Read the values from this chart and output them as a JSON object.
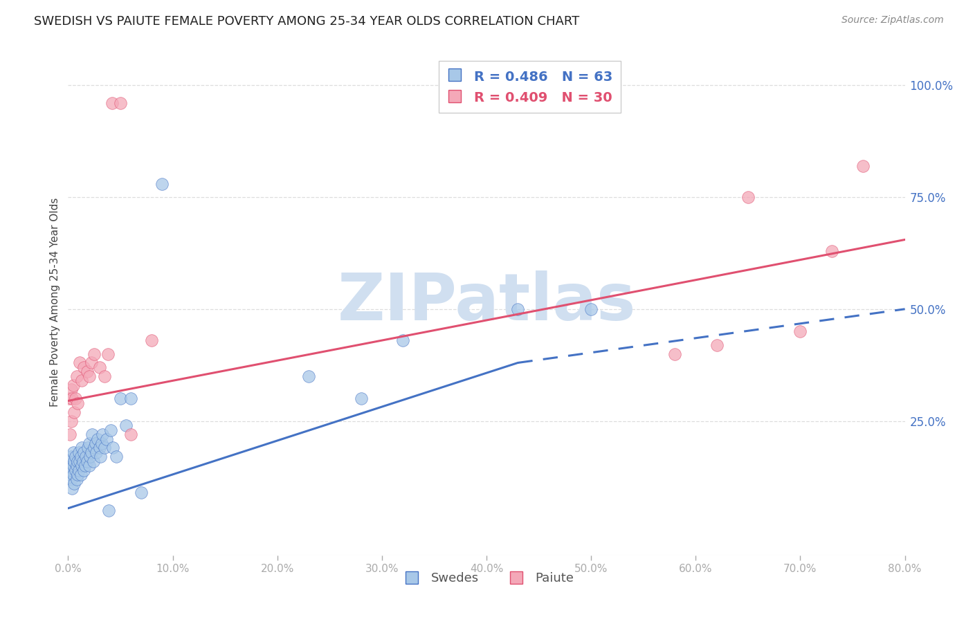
{
  "title": "SWEDISH VS PAIUTE FEMALE POVERTY AMONG 25-34 YEAR OLDS CORRELATION CHART",
  "source": "Source: ZipAtlas.com",
  "ylabel": "Female Poverty Among 25-34 Year Olds",
  "xlim": [
    0.0,
    0.8
  ],
  "ylim": [
    -0.05,
    1.08
  ],
  "yticks_right": [
    0.25,
    0.5,
    0.75,
    1.0
  ],
  "xticks": [
    0.0,
    0.1,
    0.2,
    0.3,
    0.4,
    0.5,
    0.6,
    0.7,
    0.8
  ],
  "swedes_color": "#a8c8e8",
  "paiute_color": "#f4a8b8",
  "swedes_R": 0.486,
  "swedes_N": 63,
  "paiute_R": 0.409,
  "paiute_N": 30,
  "trend_blue": "#4472c4",
  "trend_pink": "#e05070",
  "watermark": "ZIPatlas",
  "watermark_color": "#d0dff0",
  "bg_color": "#ffffff",
  "grid_color": "#dddddd",
  "swedes_x": [
    0.001,
    0.002,
    0.002,
    0.003,
    0.003,
    0.003,
    0.004,
    0.004,
    0.005,
    0.005,
    0.005,
    0.006,
    0.006,
    0.007,
    0.007,
    0.008,
    0.008,
    0.009,
    0.009,
    0.01,
    0.01,
    0.011,
    0.012,
    0.012,
    0.013,
    0.013,
    0.014,
    0.015,
    0.015,
    0.016,
    0.017,
    0.018,
    0.019,
    0.02,
    0.02,
    0.021,
    0.022,
    0.023,
    0.024,
    0.025,
    0.026,
    0.027,
    0.028,
    0.03,
    0.031,
    0.032,
    0.033,
    0.035,
    0.037,
    0.039,
    0.041,
    0.043,
    0.046,
    0.05,
    0.055,
    0.06,
    0.07,
    0.09,
    0.23,
    0.28,
    0.32,
    0.43,
    0.5
  ],
  "swedes_y": [
    0.14,
    0.13,
    0.16,
    0.12,
    0.15,
    0.17,
    0.1,
    0.14,
    0.13,
    0.15,
    0.18,
    0.11,
    0.16,
    0.14,
    0.17,
    0.12,
    0.15,
    0.13,
    0.16,
    0.14,
    0.18,
    0.16,
    0.13,
    0.17,
    0.15,
    0.19,
    0.16,
    0.14,
    0.18,
    0.15,
    0.17,
    0.16,
    0.19,
    0.15,
    0.2,
    0.17,
    0.18,
    0.22,
    0.16,
    0.19,
    0.2,
    0.18,
    0.21,
    0.19,
    0.17,
    0.2,
    0.22,
    0.19,
    0.21,
    0.05,
    0.23,
    0.19,
    0.17,
    0.3,
    0.24,
    0.3,
    0.09,
    0.78,
    0.35,
    0.3,
    0.43,
    0.5,
    0.5
  ],
  "paiute_x": [
    0.001,
    0.002,
    0.003,
    0.003,
    0.004,
    0.005,
    0.006,
    0.007,
    0.008,
    0.009,
    0.011,
    0.013,
    0.015,
    0.018,
    0.02,
    0.022,
    0.025,
    0.03,
    0.035,
    0.038,
    0.042,
    0.05,
    0.06,
    0.08,
    0.58,
    0.62,
    0.65,
    0.7,
    0.73,
    0.76
  ],
  "paiute_y": [
    0.3,
    0.22,
    0.32,
    0.25,
    0.3,
    0.33,
    0.27,
    0.3,
    0.35,
    0.29,
    0.38,
    0.34,
    0.37,
    0.36,
    0.35,
    0.38,
    0.4,
    0.37,
    0.35,
    0.4,
    0.96,
    0.96,
    0.22,
    0.43,
    0.4,
    0.42,
    0.75,
    0.45,
    0.63,
    0.82
  ],
  "sw_trend_x_solid_start": 0.0,
  "sw_trend_x_solid_end": 0.43,
  "sw_trend_x_dash_end": 0.8,
  "sw_trend_y_at_0": 0.055,
  "sw_trend_y_at_043": 0.38,
  "sw_trend_y_at_08": 0.5,
  "pa_trend_y_at_0": 0.295,
  "pa_trend_y_at_08": 0.655
}
